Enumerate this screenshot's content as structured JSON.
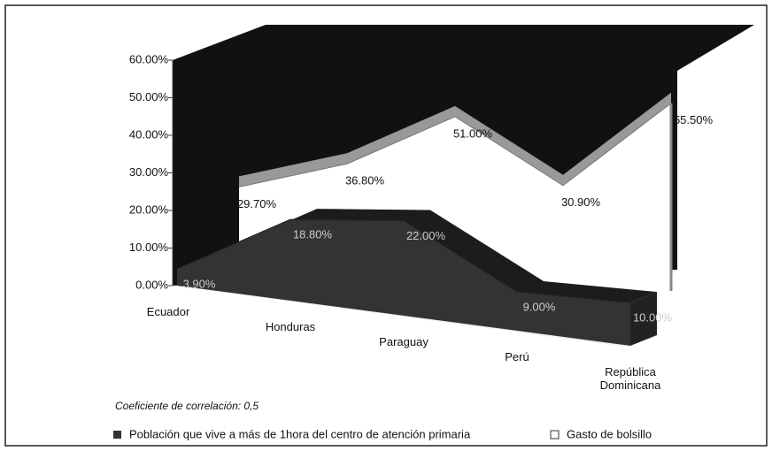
{
  "chart_data": {
    "type": "area3d",
    "categories": [
      "Ecuador",
      "Honduras",
      "Paraguay",
      "Perú",
      "República Dominicana"
    ],
    "series": [
      {
        "name": "Población que vive a más de 1hora del centro de atención primaria",
        "color": "#333333",
        "values": [
          3.9,
          18.8,
          22,
          9,
          10
        ],
        "value_labels": [
          "3.90%",
          "18.80%",
          "22.00%",
          "9.00%",
          "10.00%"
        ]
      },
      {
        "name": "Gasto de bolsillo",
        "color": "#ffffff",
        "values": [
          29.7,
          36.8,
          51,
          30.9,
          55.5
        ],
        "value_labels": [
          "29.70%",
          "36.80%",
          "51.00%",
          "30.90%",
          "55.50%"
        ]
      }
    ],
    "ylim": [
      0,
      60
    ],
    "yticks": [
      {
        "value": 0,
        "label": "0.00%"
      },
      {
        "value": 10,
        "label": "10.00%"
      },
      {
        "value": 20,
        "label": "20.00%"
      },
      {
        "value": 30,
        "label": "30.00%"
      },
      {
        "value": 40,
        "label": "40.00%"
      },
      {
        "value": 50,
        "label": "50.00%"
      },
      {
        "value": 60,
        "label": "60.00%"
      }
    ],
    "annotation": "Coeficiente de correlación: 0,5"
  }
}
